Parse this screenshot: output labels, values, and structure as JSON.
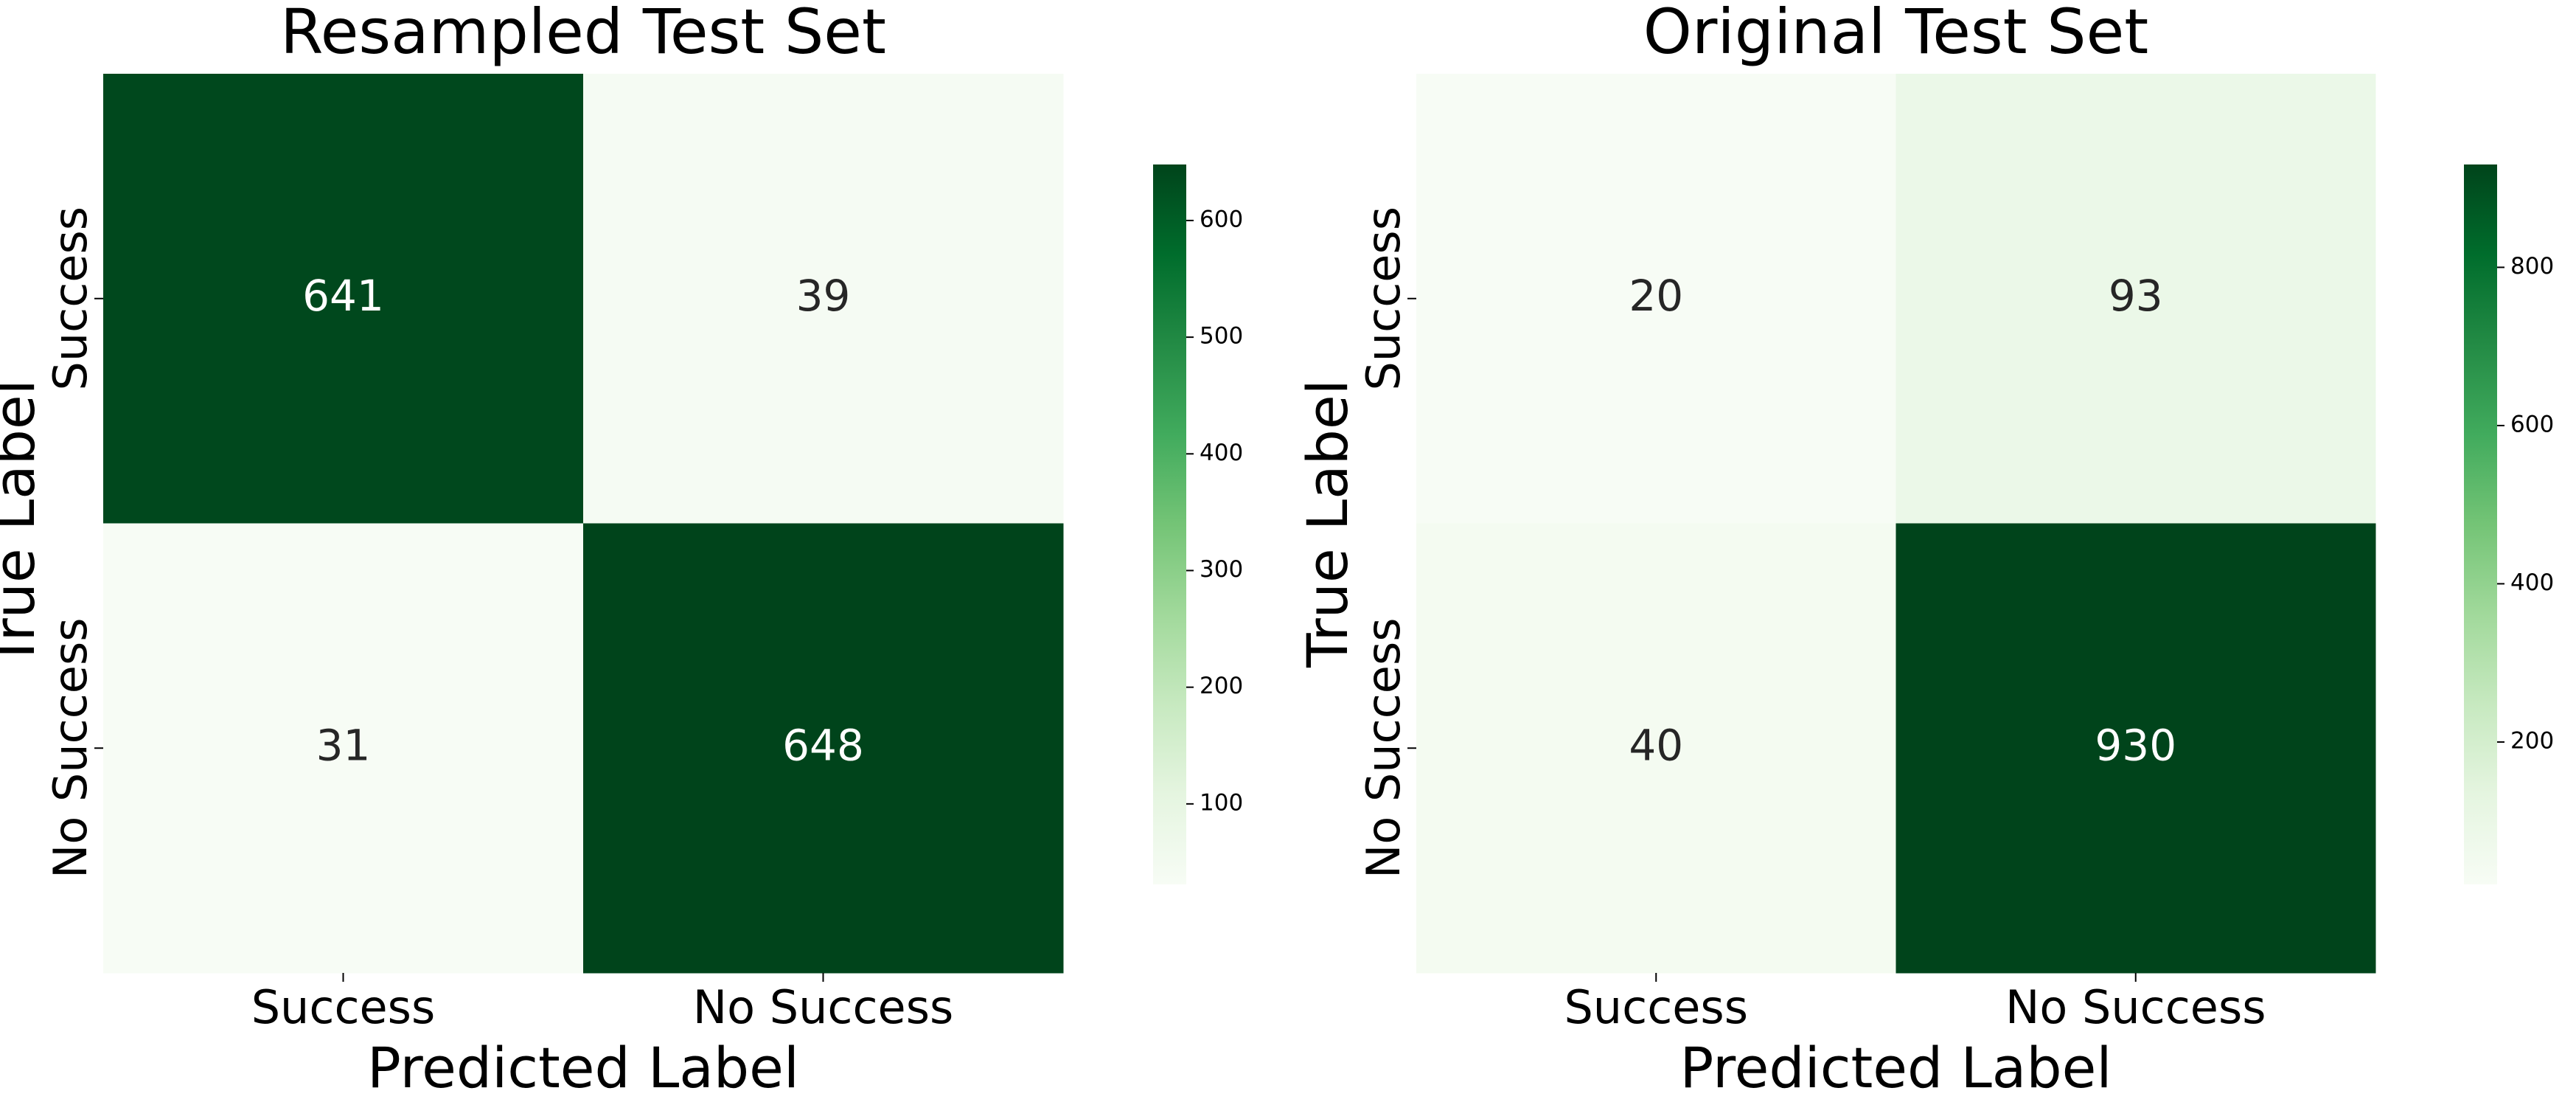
{
  "chart_data": [
    {
      "type": "heatmap",
      "title": "Resampled Test Set",
      "xlabel": "Predicted Label",
      "ylabel": "True Label",
      "x_categories": [
        "Success",
        "No Success"
      ],
      "y_categories": [
        "Success",
        "No Success"
      ],
      "values": [
        [
          641,
          39
        ],
        [
          31,
          648
        ]
      ],
      "colormap": "Greens",
      "clim": [
        31,
        648
      ],
      "cticks": [
        100,
        200,
        300,
        400,
        500,
        600
      ]
    },
    {
      "type": "heatmap",
      "title": "Original Test Set",
      "xlabel": "Predicted Label",
      "ylabel": "True Label",
      "x_categories": [
        "Success",
        "No Success"
      ],
      "y_categories": [
        "Success",
        "No Success"
      ],
      "values": [
        [
          20,
          93
        ],
        [
          40,
          930
        ]
      ],
      "colormap": "Greens",
      "clim": [
        20,
        930
      ],
      "cticks": [
        200,
        400,
        600,
        800
      ]
    }
  ]
}
